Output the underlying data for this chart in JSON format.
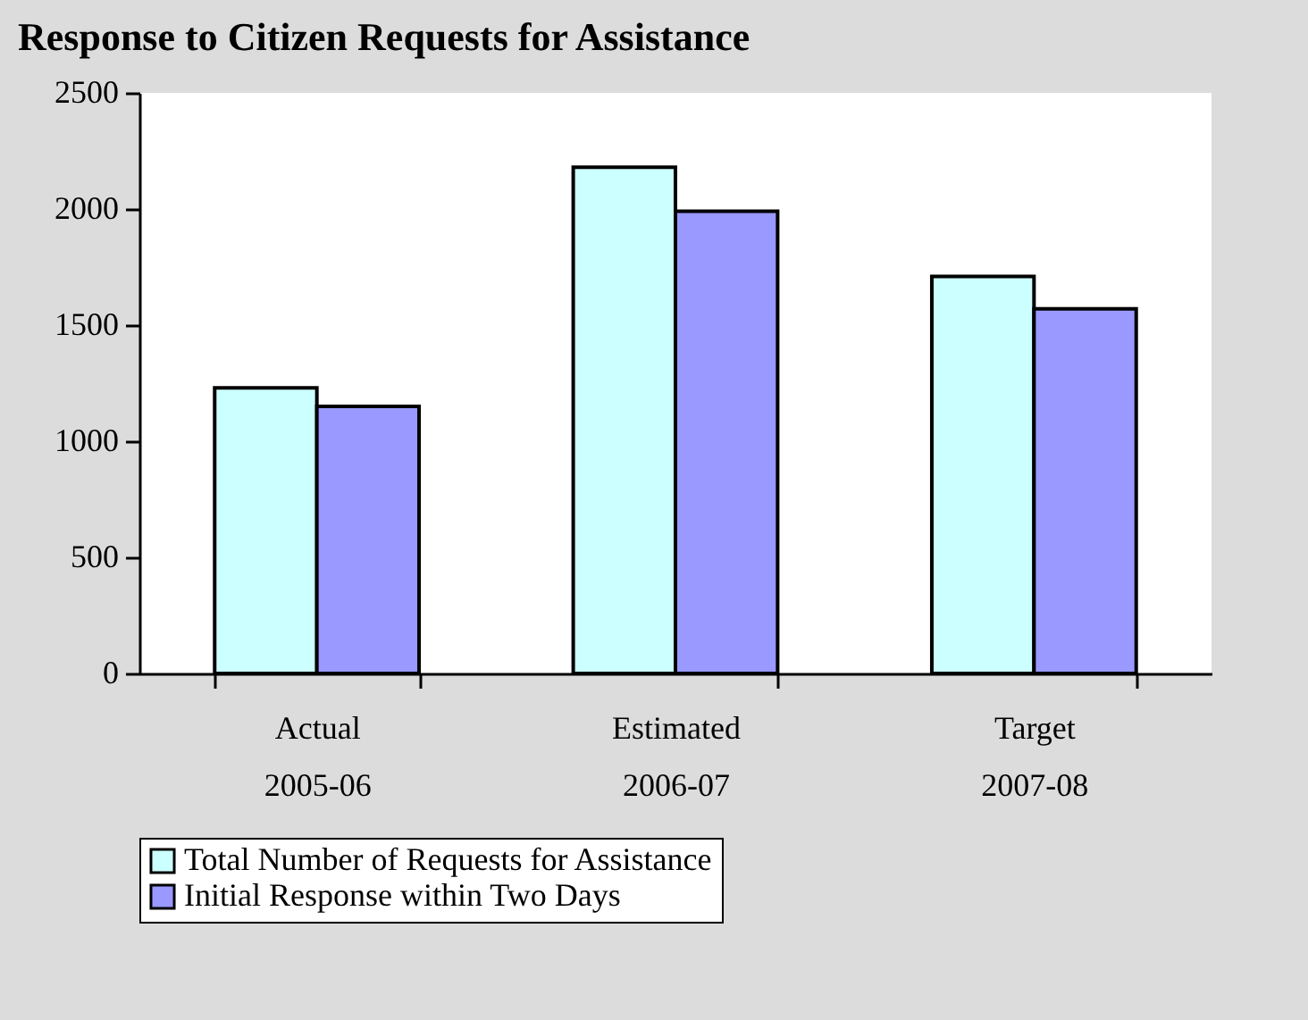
{
  "chart_data": {
    "type": "bar",
    "title": "Response to Citizen Requests for Assistance",
    "categories": [
      "Actual\n2005-06",
      "Estimated\n2006-07",
      "Target\n2007-08"
    ],
    "series": [
      {
        "name": "Total Number of Requests for Assistance",
        "color": "#ccffff",
        "values": [
          1230,
          2180,
          1710
        ]
      },
      {
        "name": "Initial Response within Two Days",
        "color": "#9999ff",
        "values": [
          1150,
          1990,
          1570
        ]
      }
    ],
    "ylim": [
      0,
      2500
    ],
    "yticks": [
      0,
      500,
      1000,
      1500,
      2000,
      2500
    ],
    "grid": false,
    "legend": "bottom"
  }
}
